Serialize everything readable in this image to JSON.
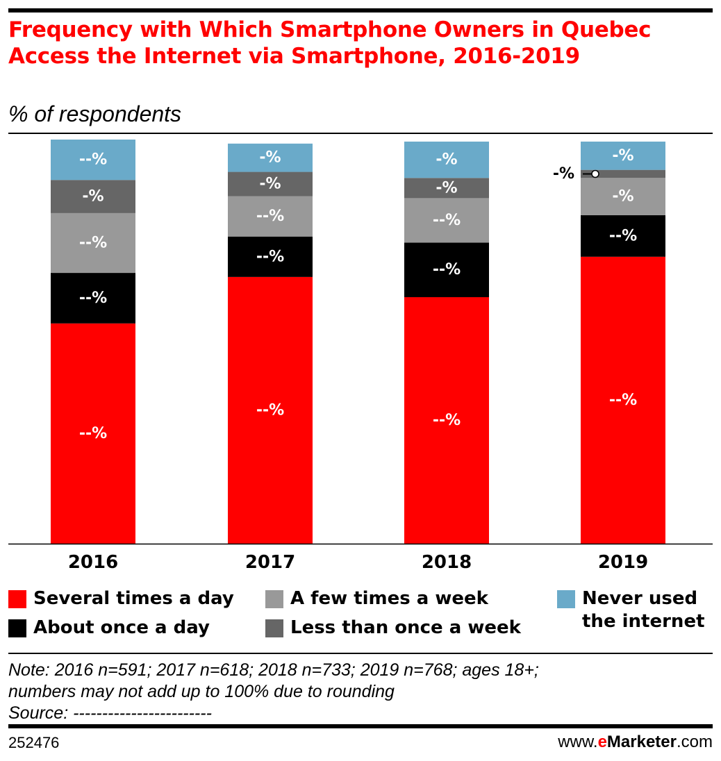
{
  "header": {
    "title": "Frequency with Which Smartphone Owners in Quebec Access the Internet via Smartphone, 2016-2019",
    "subtitle": "% of respondents"
  },
  "chart_data": {
    "type": "bar",
    "stacked": true,
    "categories": [
      "2016",
      "2017",
      "2018",
      "2019"
    ],
    "series": [
      {
        "name": "Several times a day",
        "color": "#ff0000",
        "values": [
          54.5,
          66,
          61,
          71
        ],
        "labels": [
          "--%",
          "--%",
          "--%",
          "--%"
        ]
      },
      {
        "name": "About once a day",
        "color": "#000000",
        "values": [
          12.5,
          10,
          13.5,
          10.3
        ],
        "labels": [
          "--%",
          "--%",
          "--%",
          "--%"
        ]
      },
      {
        "name": "A few times a week",
        "color": "#999999",
        "values": [
          14.8,
          10,
          11,
          9.2
        ],
        "labels": [
          "--%",
          "--%",
          "--%",
          "-%"
        ]
      },
      {
        "name": "Less than once a week",
        "color": "#666666",
        "values": [
          8.2,
          6,
          5,
          2
        ],
        "labels": [
          "-%",
          "-%",
          "-%",
          "-%"
        ]
      },
      {
        "name": "Never used the internet",
        "color": "#6aaac9",
        "values": [
          10,
          7,
          9,
          7
        ],
        "labels": [
          "--%",
          "-%",
          "-%",
          "-%"
        ]
      }
    ],
    "ylim": [
      0,
      100
    ],
    "legend": "bottom"
  },
  "legend": {
    "items": [
      {
        "label": "Several times a day",
        "color": "#ff0000"
      },
      {
        "label": "About once a day",
        "color": "#000000"
      },
      {
        "label": "A few times a week",
        "color": "#999999"
      },
      {
        "label": "Less than once a week",
        "color": "#666666"
      },
      {
        "label": "Never used the internet",
        "color": "#6aaac9"
      }
    ]
  },
  "note": {
    "line1": "Note: 2016 n=591; 2017 n=618; 2018 n=733; 2019 n=768; ages 18+;",
    "line2": "numbers may not add up to 100% due to rounding",
    "source": "Source: ------------------------"
  },
  "footer": {
    "id": "252476",
    "brand_prefix": "www.",
    "brand_e": "e",
    "brand_marketer": "Marketer",
    "brand_suffix": ".com"
  }
}
